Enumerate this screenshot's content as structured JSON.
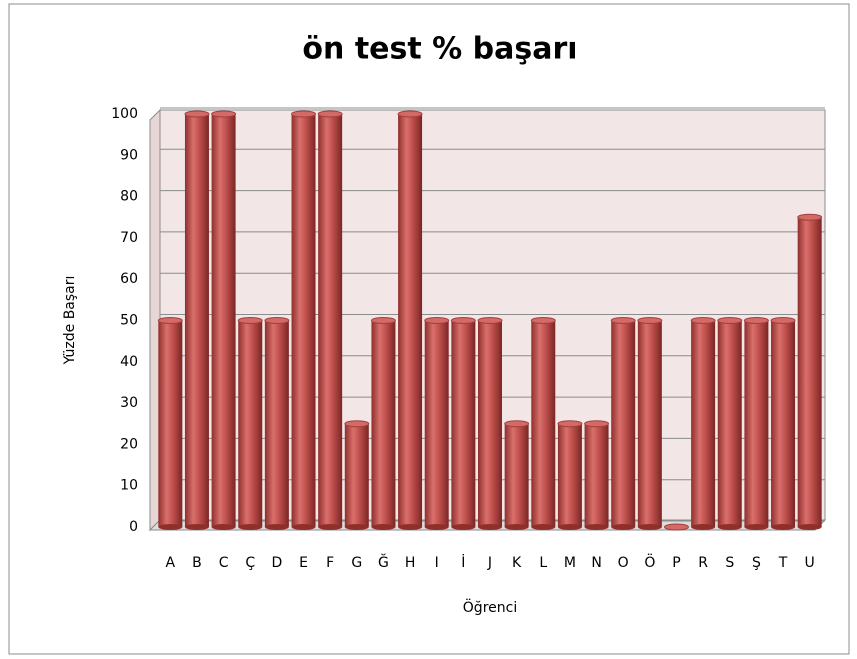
{
  "chart_data": {
    "type": "bar",
    "title": "ön test % başarı",
    "x_label": "Öğrenci",
    "y_label": "Yüzde Başarı",
    "categories": [
      "A",
      "B",
      "C",
      "Ç",
      "D",
      "E",
      "F",
      "G",
      "Ğ",
      "H",
      "I",
      "İ",
      "J",
      "K",
      "L",
      "M",
      "N",
      "O",
      "Ö",
      "P",
      "R",
      "S",
      "Ş",
      "T",
      "U"
    ],
    "values": [
      50,
      100,
      100,
      50,
      50,
      100,
      100,
      25,
      50,
      100,
      50,
      50,
      50,
      25,
      50,
      25,
      25,
      50,
      50,
      0,
      50,
      50,
      50,
      50,
      75
    ],
    "color": "#c0504d",
    "ylim": [
      0,
      100
    ],
    "yticks": [
      0,
      10,
      20,
      30,
      40,
      50,
      60,
      70,
      80,
      90,
      100
    ],
    "grid": true
  }
}
